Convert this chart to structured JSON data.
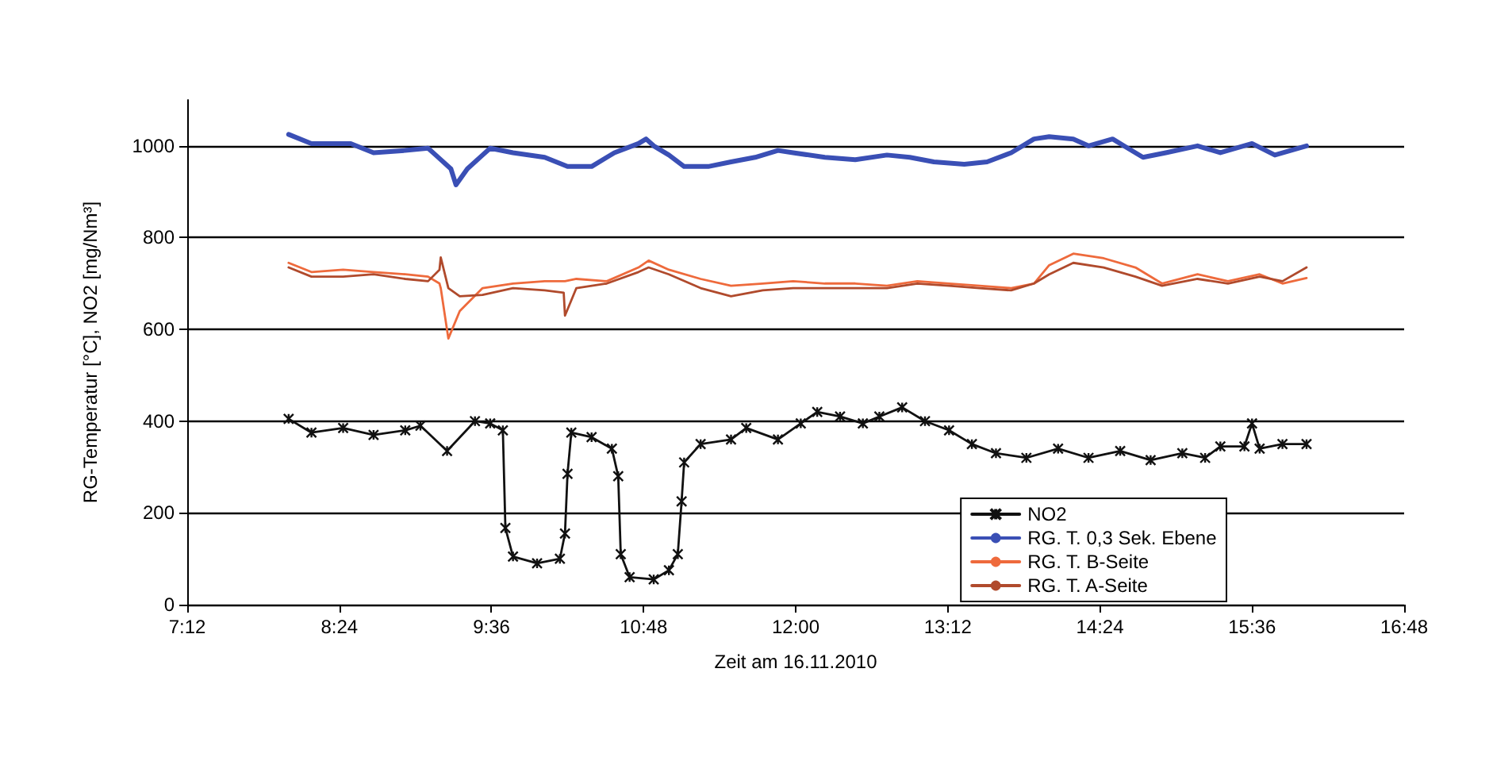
{
  "chart_data": {
    "type": "line",
    "xlabel": "Zeit am 16.11.2010",
    "ylabel": "RG-Temperatur [°C], NO2 [mg/Nm³]",
    "xlim": [
      7.2,
      16.8
    ],
    "xticks": [
      {
        "value": 7.2,
        "label": "7:12"
      },
      {
        "value": 8.4,
        "label": "8:24"
      },
      {
        "value": 9.6,
        "label": "9:36"
      },
      {
        "value": 10.8,
        "label": "10:48"
      },
      {
        "value": 12,
        "label": "12:00"
      },
      {
        "value": 13.2,
        "label": "13:12"
      },
      {
        "value": 14.4,
        "label": "14:24"
      },
      {
        "value": 15.6,
        "label": "15:36"
      },
      {
        "value": 16.8,
        "label": "16:48"
      }
    ],
    "ylim": [
      0,
      1100
    ],
    "yticks": [
      0,
      200,
      400,
      600,
      800,
      1000
    ],
    "grid": "y",
    "legend": "bottom right",
    "line_style": "solid",
    "series": [
      {
        "name": "NO2",
        "color": "#111111",
        "marker": "cross",
        "x": [
          8.0,
          8.18,
          8.43,
          8.67,
          8.92,
          9.04,
          9.25,
          9.47,
          9.59,
          9.69,
          9.71,
          9.77,
          9.96,
          10.14,
          10.18,
          10.2,
          10.23,
          10.39,
          10.55,
          10.6,
          10.62,
          10.69,
          10.88,
          11.0,
          11.07,
          11.1,
          11.12,
          11.25,
          11.49,
          11.61,
          11.86,
          12.04,
          12.17,
          12.35,
          12.53,
          12.66,
          12.84,
          13.02,
          13.21,
          13.39,
          13.58,
          13.82,
          14.07,
          14.31,
          14.56,
          14.8,
          15.05,
          15.23,
          15.35,
          15.54,
          15.6,
          15.66,
          15.84,
          16.03
        ],
        "values": [
          405,
          375,
          385,
          370,
          380,
          390,
          335,
          400,
          395,
          380,
          167,
          105,
          90,
          100,
          155,
          285,
          375,
          365,
          340,
          280,
          110,
          60,
          55,
          75,
          110,
          225,
          310,
          350,
          360,
          385,
          360,
          395,
          420,
          410,
          395,
          410,
          430,
          400,
          380,
          350,
          330,
          320,
          340,
          320,
          335,
          315,
          330,
          320,
          345,
          345,
          395,
          340,
          350,
          350
        ]
      },
      {
        "name": "RG. T. 0,3 Sek. Ebene",
        "color": "#3a4fb5",
        "marker": "none",
        "x": [
          8.0,
          8.18,
          8.3,
          8.49,
          8.67,
          8.92,
          9.1,
          9.16,
          9.28,
          9.32,
          9.41,
          9.53,
          9.59,
          9.77,
          10.02,
          10.2,
          10.39,
          10.51,
          10.57,
          10.76,
          10.82,
          10.88,
          11.0,
          11.12,
          11.31,
          11.49,
          11.68,
          11.86,
          11.98,
          12.23,
          12.47,
          12.72,
          12.9,
          13.09,
          13.33,
          13.51,
          13.7,
          13.88,
          14.0,
          14.19,
          14.31,
          14.5,
          14.62,
          14.74,
          14.92,
          15.17,
          15.35,
          15.6,
          15.78,
          16.03
        ],
        "values": [
          1025,
          1005,
          1005,
          1005,
          985,
          990,
          995,
          980,
          950,
          915,
          950,
          980,
          995,
          985,
          975,
          955,
          955,
          975,
          985,
          1005,
          1015,
          1000,
          980,
          955,
          955,
          965,
          975,
          990,
          985,
          975,
          970,
          980,
          975,
          965,
          960,
          965,
          985,
          1015,
          1020,
          1015,
          1000,
          1015,
          995,
          975,
          985,
          1000,
          985,
          1005,
          980,
          1000
        ]
      },
      {
        "name": "RG. T. B-Seite",
        "color": "#ee6a3c",
        "marker": "none",
        "x": [
          8.0,
          8.18,
          8.43,
          8.67,
          8.92,
          9.1,
          9.19,
          9.2,
          9.26,
          9.35,
          9.53,
          9.77,
          10.02,
          10.17,
          10.18,
          10.27,
          10.51,
          10.76,
          10.84,
          11.0,
          11.25,
          11.49,
          11.74,
          11.98,
          12.23,
          12.47,
          12.72,
          12.96,
          13.21,
          13.45,
          13.7,
          13.88,
          14.0,
          14.19,
          14.43,
          14.68,
          14.89,
          15.17,
          15.41,
          15.66,
          15.84,
          16.03
        ],
        "values": [
          745,
          725,
          730,
          725,
          720,
          715,
          700,
          690,
          580,
          640,
          690,
          700,
          705,
          705,
          705,
          710,
          705,
          735,
          750,
          730,
          710,
          695,
          700,
          705,
          700,
          700,
          695,
          705,
          700,
          695,
          690,
          700,
          740,
          765,
          755,
          735,
          700,
          720,
          705,
          720,
          700,
          712
        ]
      },
      {
        "name": "RG. T. A-Seite",
        "color": "#b04a2c",
        "marker": "none",
        "x": [
          8.0,
          8.18,
          8.43,
          8.67,
          8.92,
          9.1,
          9.19,
          9.2,
          9.26,
          9.35,
          9.53,
          9.77,
          10.02,
          10.17,
          10.18,
          10.27,
          10.51,
          10.76,
          10.84,
          11.0,
          11.25,
          11.49,
          11.74,
          11.98,
          12.23,
          12.47,
          12.72,
          12.96,
          13.21,
          13.45,
          13.7,
          13.88,
          14.0,
          14.19,
          14.43,
          14.68,
          14.89,
          15.17,
          15.41,
          15.66,
          15.84,
          16.03
        ],
        "values": [
          735,
          715,
          715,
          720,
          710,
          705,
          730,
          757,
          690,
          672,
          675,
          690,
          685,
          680,
          630,
          690,
          700,
          725,
          735,
          720,
          690,
          672,
          685,
          690,
          690,
          690,
          690,
          700,
          695,
          690,
          685,
          700,
          720,
          745,
          735,
          715,
          695,
          710,
          700,
          715,
          705,
          735
        ]
      }
    ]
  }
}
